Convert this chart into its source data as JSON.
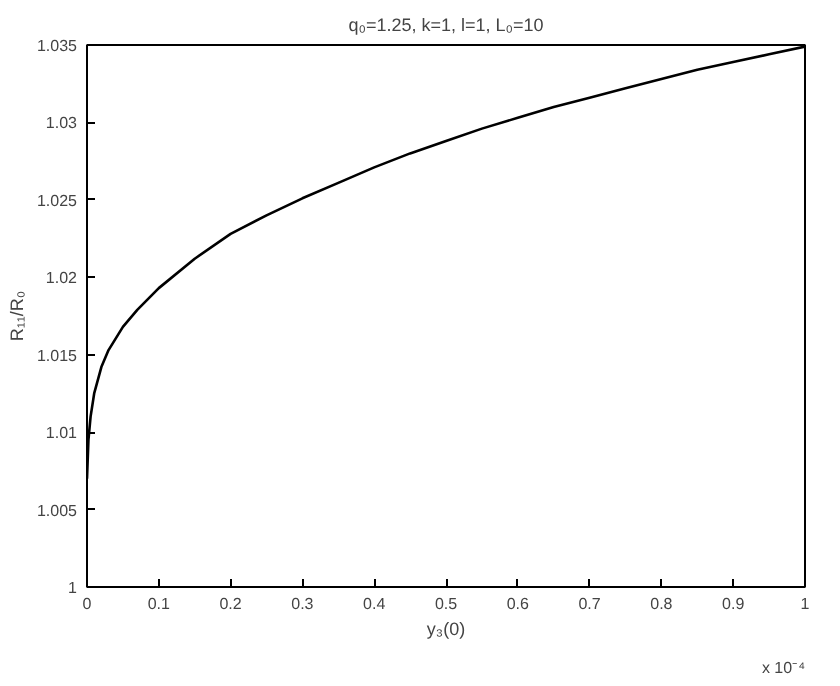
{
  "chart_data": {
    "type": "line",
    "title": "q₀=1.25, k=1, l=1, L₀=10",
    "xlabel": "y₃(0)",
    "ylabel": "R₁₁/R₀",
    "annotations": [
      "x 10⁻⁴"
    ],
    "x": [
      0,
      0.002,
      0.005,
      0.01,
      0.02,
      0.03,
      0.05,
      0.07,
      0.1,
      0.15,
      0.2,
      0.25,
      0.3,
      0.35,
      0.4,
      0.45,
      0.5,
      0.55,
      0.6,
      0.65,
      0.7,
      0.75,
      0.8,
      0.85,
      0.9,
      0.95,
      1
    ],
    "series": [
      {
        "color": "#000000",
        "values": [
          1.007,
          1.0095,
          1.011,
          1.0125,
          1.0142,
          1.0153,
          1.0168,
          1.0179,
          1.0193,
          1.0212,
          1.0228,
          1.024,
          1.0251,
          1.0261,
          1.0271,
          1.028,
          1.0288,
          1.0296,
          1.0303,
          1.031,
          1.0316,
          1.0322,
          1.0328,
          1.0334,
          1.0339,
          1.0344,
          1.0349
        ]
      }
    ],
    "xlim": [
      0,
      1
    ],
    "xticks": [
      0,
      0.1,
      0.2,
      0.3,
      0.4,
      0.5,
      0.6,
      0.7,
      0.8,
      0.9,
      1
    ],
    "ylim": [
      1,
      1.035
    ],
    "yticks": [
      1,
      1.005,
      1.01,
      1.015,
      1.02,
      1.025,
      1.03,
      1.035
    ],
    "grid": false,
    "line_style": "solid",
    "marker": "none"
  }
}
